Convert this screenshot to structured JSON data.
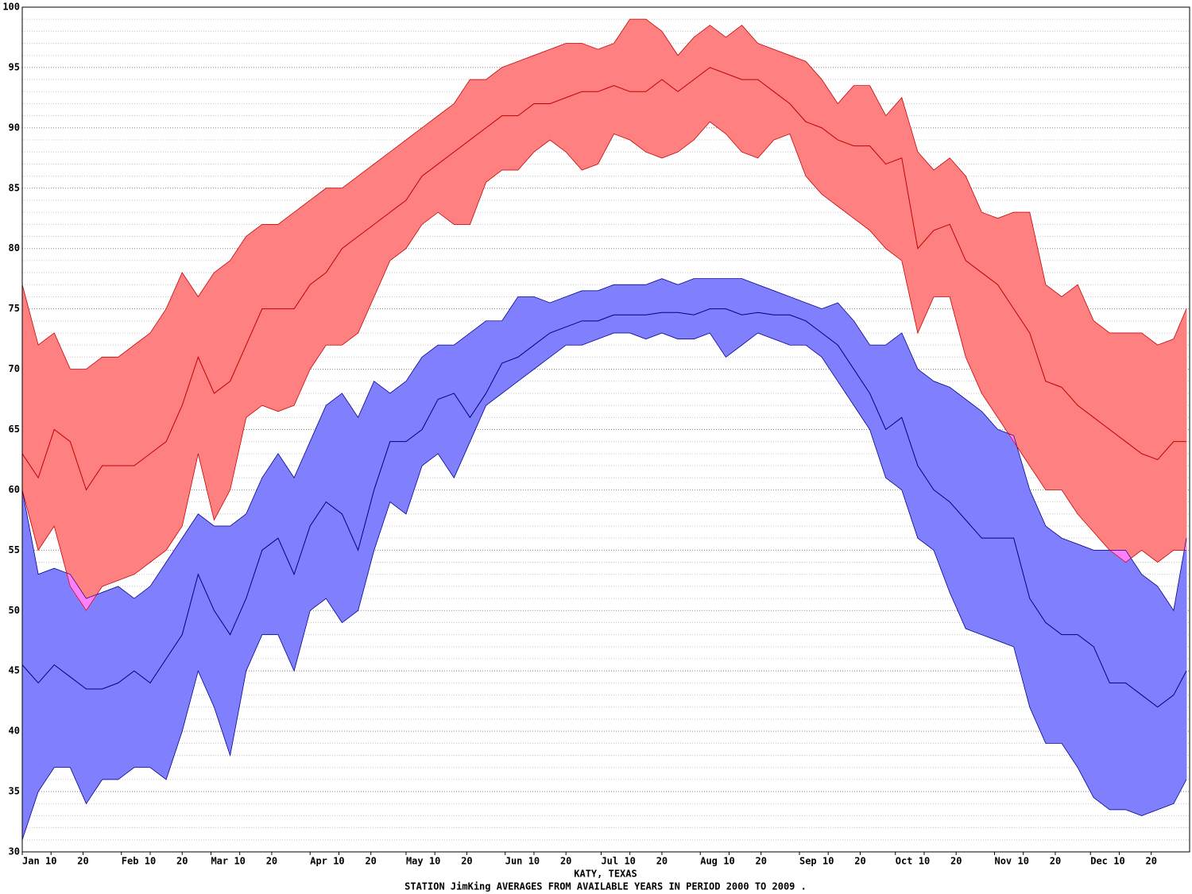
{
  "chart_data": {
    "type": "band",
    "xlabel": "KATY, TEXAS",
    "title": "STATION JimKing AVERAGES FROM AVAILABLE YEARS IN PERIOD 2000 TO 2009 .",
    "x": [
      1,
      6,
      11,
      16,
      21,
      26,
      31,
      36,
      41,
      46,
      51,
      56,
      61,
      66,
      71,
      76,
      81,
      86,
      91,
      96,
      101,
      106,
      111,
      116,
      121,
      126,
      131,
      136,
      141,
      146,
      151,
      156,
      161,
      166,
      171,
      176,
      181,
      186,
      191,
      196,
      201,
      206,
      211,
      216,
      221,
      226,
      231,
      236,
      241,
      246,
      251,
      256,
      261,
      266,
      271,
      276,
      281,
      286,
      291,
      296,
      301,
      306,
      311,
      316,
      321,
      326,
      331,
      336,
      341,
      346,
      351,
      356,
      361,
      365
    ],
    "bands": [
      {
        "color": "#8080ff",
        "line_color": "#000080",
        "upper": [
          60,
          53,
          53.5,
          53,
          51,
          51.5,
          52,
          51,
          52,
          54,
          56,
          58,
          57,
          57,
          58,
          61,
          63,
          61,
          64,
          67,
          68,
          66,
          69,
          68,
          69,
          71,
          72,
          72,
          73,
          74,
          74,
          76,
          76,
          75.5,
          76,
          76.5,
          76.5,
          77,
          77,
          77,
          77.5,
          77,
          77.5,
          77.5,
          77.5,
          77.5,
          77,
          76.5,
          76,
          75.5,
          75,
          75.5,
          74,
          72,
          72,
          73,
          70,
          69,
          68.5,
          67.5,
          66.5,
          65,
          64.5,
          60,
          57,
          56,
          55.5,
          55,
          55,
          55,
          53,
          52,
          50,
          56
        ],
        "mean": [
          45.5,
          44,
          45.5,
          44.5,
          43.5,
          43.5,
          44,
          45,
          44,
          46,
          48,
          53,
          50,
          48,
          51,
          55,
          56,
          53,
          57,
          59,
          58,
          55,
          60,
          64,
          64,
          65,
          67.5,
          68,
          66,
          68,
          70.5,
          71,
          72,
          73,
          73.5,
          74,
          74,
          74.5,
          74.5,
          74.5,
          74.7,
          74.7,
          74.5,
          75,
          75,
          74.5,
          74.7,
          74.5,
          74.5,
          74,
          73,
          72,
          70,
          68,
          65,
          66,
          62,
          60,
          59,
          57.5,
          56,
          56,
          56,
          51,
          49,
          48,
          48,
          47,
          44,
          44,
          43,
          42,
          43,
          45
        ],
        "lower": [
          31,
          35,
          37,
          37,
          34,
          36,
          36,
          37,
          37,
          36,
          40,
          45,
          42,
          38,
          45,
          48,
          48,
          45,
          50,
          51,
          49,
          50,
          55,
          59,
          58,
          62,
          63,
          61,
          64,
          67,
          68,
          69,
          70,
          71,
          72,
          72,
          72.5,
          73,
          73,
          72.5,
          73,
          72.5,
          72.5,
          73,
          71,
          72,
          73,
          72.5,
          72,
          72,
          71,
          69,
          67,
          65,
          61,
          60,
          56,
          55,
          51.5,
          48.5,
          48,
          47.5,
          47,
          42,
          39,
          39,
          37,
          34.5,
          33.5,
          33.5,
          33,
          33.5,
          34,
          36
        ]
      },
      {
        "color": "#ff8080",
        "line_color": "#c00000",
        "upper": [
          77,
          72,
          73,
          70,
          70,
          71,
          71,
          72,
          73,
          75,
          78,
          76,
          78,
          79,
          81,
          82,
          82,
          83,
          84,
          85,
          85,
          86,
          87,
          88,
          89,
          90,
          91,
          92,
          94,
          94,
          95,
          95.5,
          96,
          96.5,
          97,
          97,
          96.5,
          97,
          99,
          99,
          98,
          96,
          97.5,
          98.5,
          97.5,
          98.5,
          97,
          96.5,
          96,
          95.5,
          94,
          92,
          93.5,
          93.5,
          91,
          92.5,
          88,
          86.5,
          87.5,
          86,
          83,
          82.5,
          83,
          83,
          77,
          76,
          77,
          74,
          73,
          73,
          73,
          72,
          72.5,
          75
        ],
        "mean": [
          63,
          61,
          65,
          64,
          60,
          62,
          62,
          62,
          63,
          64,
          67,
          71,
          68,
          69,
          72,
          75,
          75,
          75,
          77,
          78,
          80,
          81,
          82,
          83,
          84,
          86,
          87,
          88,
          89,
          90,
          91,
          91,
          92,
          92,
          92.5,
          93,
          93,
          93.5,
          93,
          93,
          94,
          93,
          94,
          95,
          94.5,
          94,
          94,
          93,
          92,
          90.5,
          90,
          89,
          88.5,
          88.5,
          87,
          87.5,
          80,
          81.5,
          82,
          79,
          78,
          77,
          75,
          73,
          69,
          68.5,
          67,
          66,
          65,
          64,
          63,
          62.5,
          64,
          64
        ],
        "lower": [
          60,
          55,
          57,
          52,
          50,
          52,
          52.5,
          53,
          54,
          55,
          57,
          63,
          57.5,
          60,
          66,
          67,
          66.5,
          67,
          70,
          72,
          72,
          73,
          76,
          79,
          80,
          82,
          83,
          82,
          82,
          85.5,
          86.5,
          86.5,
          88,
          89,
          88,
          86.5,
          87,
          89.5,
          89,
          88,
          87.5,
          88,
          89,
          90.5,
          89.5,
          88,
          87.5,
          89,
          89.5,
          86,
          84.5,
          83.5,
          82.5,
          81.5,
          80,
          79,
          73,
          76,
          76,
          71,
          68,
          66,
          64,
          62,
          60,
          60,
          58,
          56.5,
          55,
          54,
          55,
          54,
          55,
          55
        ]
      }
    ],
    "overlap_color": "#ff80ff",
    "xlim": [
      1,
      366
    ],
    "xticks": [
      {
        "value": 1,
        "label": "Jan"
      },
      {
        "value": 10,
        "label": "10"
      },
      {
        "value": 20,
        "label": "20"
      },
      {
        "value": 32,
        "label": "Feb"
      },
      {
        "value": 41,
        "label": "10"
      },
      {
        "value": 51,
        "label": "20"
      },
      {
        "value": 60,
        "label": "Mar"
      },
      {
        "value": 69,
        "label": "10"
      },
      {
        "value": 79,
        "label": "20"
      },
      {
        "value": 91,
        "label": "Apr"
      },
      {
        "value": 100,
        "label": "10"
      },
      {
        "value": 110,
        "label": "20"
      },
      {
        "value": 121,
        "label": "May"
      },
      {
        "value": 130,
        "label": "10"
      },
      {
        "value": 140,
        "label": "20"
      },
      {
        "value": 152,
        "label": "Jun"
      },
      {
        "value": 161,
        "label": "10"
      },
      {
        "value": 171,
        "label": "20"
      },
      {
        "value": 182,
        "label": "Jul"
      },
      {
        "value": 191,
        "label": "10"
      },
      {
        "value": 201,
        "label": "20"
      },
      {
        "value": 213,
        "label": "Aug"
      },
      {
        "value": 222,
        "label": "10"
      },
      {
        "value": 232,
        "label": "20"
      },
      {
        "value": 244,
        "label": "Sep"
      },
      {
        "value": 253,
        "label": "10"
      },
      {
        "value": 263,
        "label": "20"
      },
      {
        "value": 274,
        "label": "Oct"
      },
      {
        "value": 283,
        "label": "10"
      },
      {
        "value": 293,
        "label": "20"
      },
      {
        "value": 305,
        "label": "Nov"
      },
      {
        "value": 314,
        "label": "10"
      },
      {
        "value": 324,
        "label": "20"
      },
      {
        "value": 335,
        "label": "Dec"
      },
      {
        "value": 344,
        "label": "10"
      },
      {
        "value": 354,
        "label": "20"
      }
    ],
    "ylim": [
      30,
      100
    ],
    "yticks": [
      30,
      35,
      40,
      45,
      50,
      55,
      60,
      65,
      70,
      75,
      80,
      85,
      90,
      95,
      100
    ],
    "minor_yticks": [
      31,
      32,
      33,
      34,
      36,
      37,
      38,
      39,
      41,
      42,
      43,
      44,
      46,
      47,
      48,
      49,
      51,
      52,
      53,
      54,
      56,
      57,
      58,
      59,
      61,
      62,
      63,
      64,
      66,
      67,
      68,
      69,
      71,
      72,
      73,
      74,
      76,
      77,
      78,
      79,
      81,
      82,
      83,
      84,
      86,
      87,
      88,
      89,
      91,
      92,
      93,
      94,
      96,
      97,
      98,
      99
    ],
    "grid": true
  }
}
